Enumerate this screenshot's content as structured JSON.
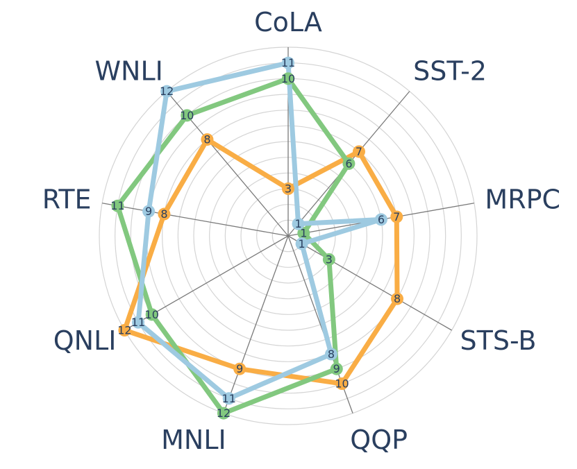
{
  "chart_data": {
    "type": "radar",
    "axes": [
      "CoLA",
      "SST-2",
      "MRPC",
      "STS-B",
      "QQP",
      "MNLI",
      "QNLI",
      "RTE",
      "WNLI"
    ],
    "rmax": 12,
    "grid": true,
    "legend": "none",
    "series": [
      {
        "color": "#f9ad45",
        "values": [
          3,
          7,
          7,
          8,
          10,
          9,
          12,
          8,
          8
        ]
      },
      {
        "color": "#82c87f",
        "values": [
          10,
          6,
          1,
          3,
          9,
          12,
          10,
          11,
          10
        ]
      },
      {
        "color": "#9ecae1",
        "values": [
          11,
          1,
          6,
          1,
          8,
          11,
          11,
          9,
          12
        ]
      }
    ]
  }
}
